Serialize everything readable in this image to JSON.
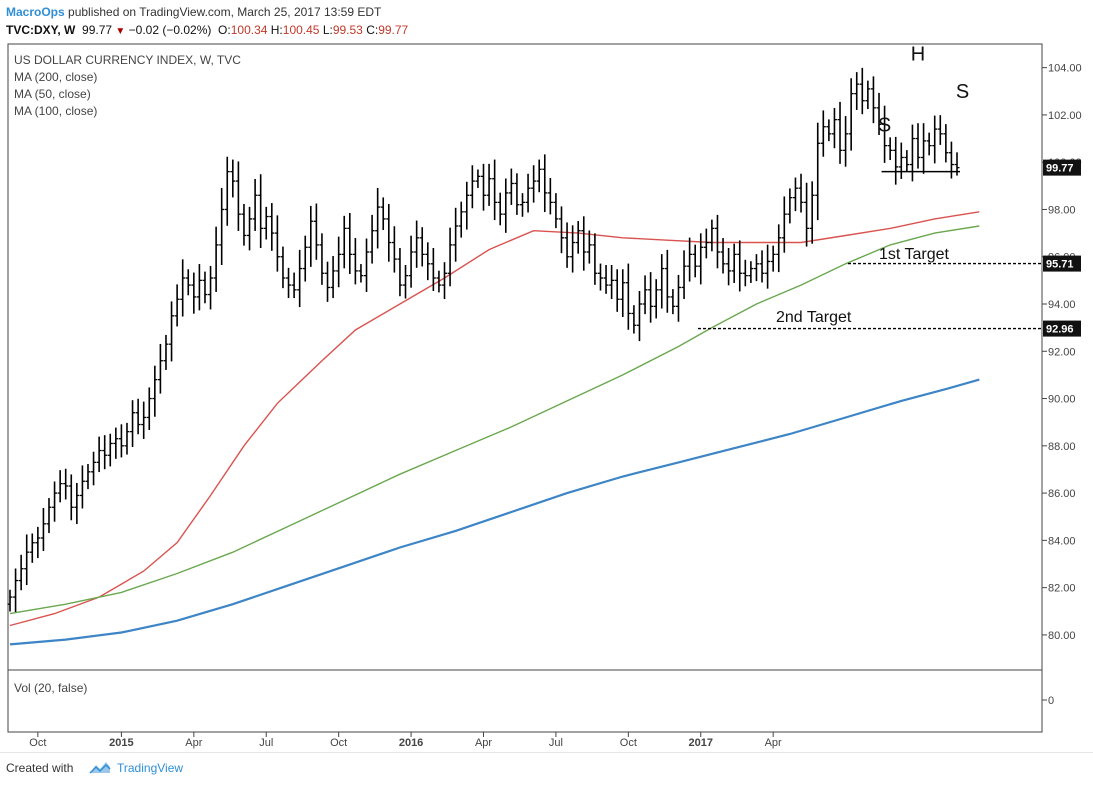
{
  "header": {
    "publisher": "MacroOps",
    "published_text": "published on TradingView.com, March 25, 2017 13:59 EDT",
    "symbol": "TVC:DXY, W",
    "last": "99.77",
    "change": "−0.02 (−0.02%)",
    "o_label": "O:",
    "o_value": "100.34",
    "h_label": "H:",
    "h_value": "100.45",
    "l_label": "L:",
    "l_value": "99.53",
    "c_label": "C:",
    "c_value": "99.77"
  },
  "legend": {
    "title": "US DOLLAR CURRENCY INDEX, W, TVC",
    "ma1": "MA (200, close)",
    "ma2": "MA (50, close)",
    "ma3": "MA (100, close)"
  },
  "volume_pane": {
    "label": "Vol (20, false)",
    "axis_label": "0"
  },
  "footer": {
    "created_with": "Created with",
    "brand": "TradingView"
  },
  "colors": {
    "bars": "#000000",
    "ma200": "#3d85c6",
    "ma50": "#d9534f",
    "ma100": "#6aa84f",
    "brand": "#2f8fd6"
  },
  "chart_data": {
    "type": "ohlc",
    "timeframe": "weekly",
    "ylim": [
      78.6,
      105.0
    ],
    "y_ticks": [
      "80.00",
      "82.00",
      "84.00",
      "86.00",
      "88.00",
      "90.00",
      "92.00",
      "94.00",
      "96.00",
      "98.00",
      "100.00",
      "102.00",
      "104.00"
    ],
    "x_ticks": [
      "Oct",
      "2015",
      "Apr",
      "Jul",
      "Oct",
      "2016",
      "Apr",
      "Jul",
      "Oct",
      "2017",
      "Apr"
    ],
    "last_price_label": "99.77",
    "bars_close": [
      81.6,
      82.3,
      82.8,
      83.5,
      83.9,
      84.1,
      84.7,
      85.4,
      86.0,
      86.4,
      86.3,
      85.4,
      85.9,
      86.5,
      86.9,
      87.3,
      87.8,
      87.6,
      88.1,
      88.3,
      88.0,
      88.6,
      89.4,
      88.9,
      89.2,
      90.0,
      90.8,
      91.6,
      92.3,
      93.5,
      94.2,
      95.1,
      94.8,
      94.3,
      95.0,
      94.4,
      95.1,
      96.5,
      98.0,
      99.6,
      99.2,
      97.8,
      96.9,
      97.6,
      98.6,
      97.2,
      97.7,
      97.0,
      96.0,
      95.1,
      94.8,
      94.6,
      95.5,
      96.4,
      97.5,
      96.5,
      95.3,
      94.7,
      95.4,
      96.1,
      97.2,
      96.1,
      95.4,
      95.2,
      96.2,
      97.1,
      98.1,
      97.6,
      96.6,
      95.9,
      94.8,
      95.2,
      96.2,
      96.8,
      96.1,
      95.7,
      95.1,
      94.8,
      95.3,
      96.5,
      97.3,
      97.9,
      98.6,
      99.2,
      99.4,
      98.6,
      99.3,
      98.3,
      97.8,
      98.7,
      99.1,
      98.2,
      98.3,
      98.9,
      99.2,
      99.7,
      98.7,
      98.3,
      97.6,
      96.8,
      96.0,
      96.6,
      97.1,
      96.2,
      96.5,
      95.3,
      95.1,
      94.8,
      95.0,
      94.2,
      94.9,
      93.6,
      93.1,
      94.0,
      94.6,
      93.9,
      94.6,
      95.5,
      94.3,
      93.9,
      94.7,
      95.6,
      96.1,
      95.6,
      96.4,
      96.6,
      97.2,
      96.2,
      95.7,
      95.4,
      96.1,
      95.3,
      95.2,
      95.5,
      95.7,
      95.3,
      95.8,
      96.1,
      96.8,
      97.8,
      98.5,
      98.9,
      98.3,
      97.2,
      98.6,
      100.8,
      101.5,
      101.2,
      101.8,
      100.5,
      101.2,
      102.9,
      103.3,
      102.6,
      103.1,
      102.3,
      101.6,
      100.7,
      100.5,
      99.8,
      100.2,
      99.9,
      101.0,
      100.2,
      100.9,
      100.7,
      101.4,
      101.2,
      100.4,
      99.9,
      99.77
    ],
    "series": [
      {
        "name": "MA (200, close)",
        "color": "#3d85c6",
        "values": [
          [
            0,
            79.6
          ],
          [
            10,
            79.8
          ],
          [
            20,
            80.1
          ],
          [
            30,
            80.6
          ],
          [
            40,
            81.3
          ],
          [
            50,
            82.1
          ],
          [
            60,
            82.9
          ],
          [
            70,
            83.7
          ],
          [
            80,
            84.4
          ],
          [
            90,
            85.2
          ],
          [
            100,
            86.0
          ],
          [
            110,
            86.7
          ],
          [
            120,
            87.3
          ],
          [
            130,
            87.9
          ],
          [
            140,
            88.5
          ],
          [
            150,
            89.2
          ],
          [
            160,
            89.9
          ],
          [
            168,
            90.4
          ],
          [
            174,
            90.8
          ]
        ]
      },
      {
        "name": "MA (50, close)",
        "color": "#d9534f",
        "values": [
          [
            0,
            80.4
          ],
          [
            8,
            80.9
          ],
          [
            16,
            81.6
          ],
          [
            24,
            82.7
          ],
          [
            30,
            83.9
          ],
          [
            36,
            85.9
          ],
          [
            42,
            88.0
          ],
          [
            48,
            89.8
          ],
          [
            56,
            91.6
          ],
          [
            62,
            92.9
          ],
          [
            70,
            94.0
          ],
          [
            78,
            95.1
          ],
          [
            86,
            96.3
          ],
          [
            94,
            97.1
          ],
          [
            102,
            97.0
          ],
          [
            110,
            96.8
          ],
          [
            118,
            96.7
          ],
          [
            126,
            96.6
          ],
          [
            134,
            96.6
          ],
          [
            142,
            96.6
          ],
          [
            150,
            96.9
          ],
          [
            158,
            97.2
          ],
          [
            166,
            97.6
          ],
          [
            174,
            97.9
          ]
        ]
      },
      {
        "name": "MA (100, close)",
        "color": "#6aa84f",
        "values": [
          [
            0,
            80.9
          ],
          [
            10,
            81.3
          ],
          [
            20,
            81.8
          ],
          [
            30,
            82.6
          ],
          [
            40,
            83.5
          ],
          [
            50,
            84.6
          ],
          [
            60,
            85.7
          ],
          [
            70,
            86.8
          ],
          [
            80,
            87.8
          ],
          [
            90,
            88.8
          ],
          [
            100,
            89.9
          ],
          [
            110,
            91.0
          ],
          [
            120,
            92.2
          ],
          [
            126,
            93.0
          ],
          [
            134,
            94.0
          ],
          [
            142,
            94.8
          ],
          [
            150,
            95.7
          ],
          [
            158,
            96.5
          ],
          [
            166,
            97.0
          ],
          [
            174,
            97.3
          ]
        ]
      }
    ],
    "annotations": [
      {
        "text": "S",
        "bar": 157,
        "price": 100.8
      },
      {
        "text": "H",
        "bar": 163,
        "price": 103.8
      },
      {
        "text": "S",
        "bar": 171,
        "price": 102.2
      },
      {
        "text": "neckline",
        "from_bar": 157,
        "to_bar": 174,
        "price": 99.6
      },
      {
        "text": "1st Target",
        "price": 95.71
      },
      {
        "text": "2nd Target",
        "price": 92.96
      }
    ],
    "target_labels": [
      "1st Target",
      "2nd Target"
    ],
    "price_labels": [
      "95.71",
      "92.96"
    ]
  }
}
